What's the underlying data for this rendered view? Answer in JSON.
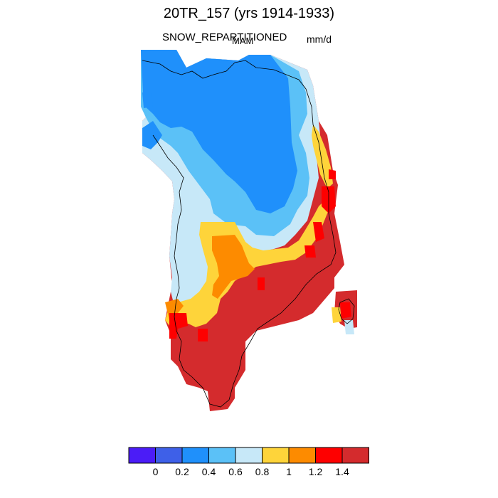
{
  "title": "20TR_157 (yrs 1914-1933)",
  "variable": "SNOW_REPARTITIONED",
  "season": "MAM",
  "units": "mm/d",
  "colorbar": {
    "colors": [
      "#4b1cf7",
      "#3e60e8",
      "#1f90fb",
      "#5bc1f7",
      "#c7e8f8",
      "#fed43a",
      "#fd8b00",
      "#fe0000",
      "#d42b2d"
    ],
    "tick_labels": [
      "0",
      "0.2",
      "0.4",
      "0.6",
      "0.8",
      "1",
      "1.2",
      "1.4"
    ]
  },
  "palette": {
    "blue": "#1f90fb",
    "lightblue": "#5bc1f7",
    "paleblue": "#c7e8f8",
    "yellow": "#fed43a",
    "orange": "#fd8b00",
    "red": "#fe0000",
    "darkred": "#d42b2d"
  }
}
